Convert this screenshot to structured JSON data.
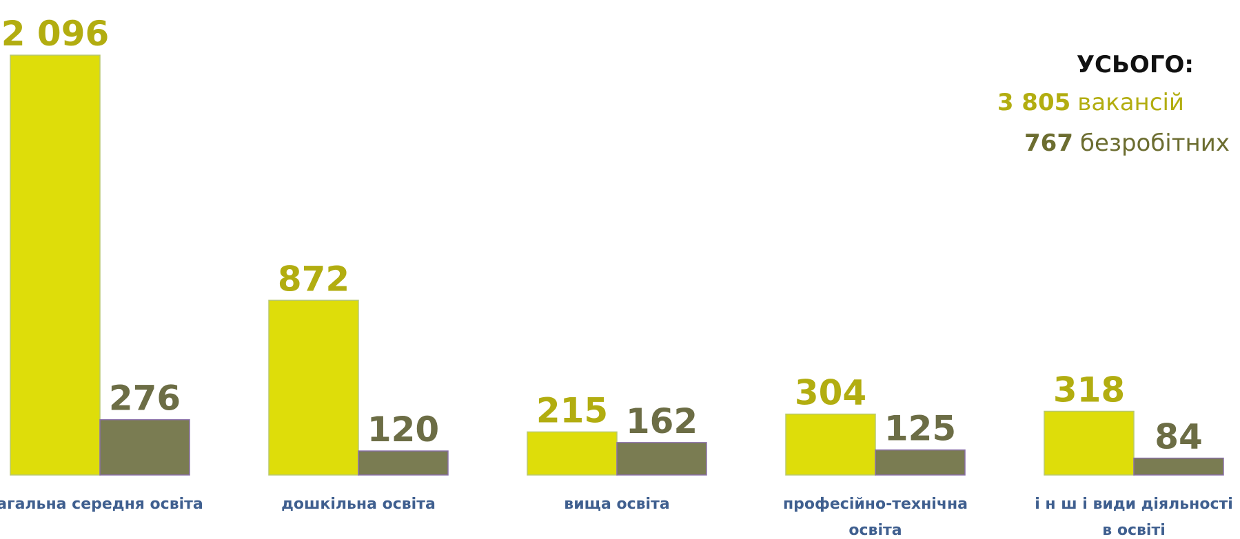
{
  "chart_data": {
    "type": "bar",
    "categories": [
      [
        "агальна середня освіта"
      ],
      [
        "дошкільна освіта"
      ],
      [
        "вища освіта"
      ],
      [
        "професійно-технічна",
        "освіта"
      ],
      [
        "і н ш і  види діяльності",
        "в освіті"
      ]
    ],
    "series": [
      {
        "name": "вакансій",
        "color": "#dedd0a",
        "label_color": "#b2ad10",
        "values": [
          2096,
          872,
          215,
          304,
          318
        ],
        "value_labels": [
          "2 096",
          "872",
          "215",
          "304",
          "318"
        ]
      },
      {
        "name": "безробітних",
        "color": "#7a7c52",
        "label_color": "#6c6d45",
        "values": [
          276,
          120,
          162,
          125,
          84
        ]
      }
    ],
    "ylim": [
      0,
      2100
    ],
    "summary": {
      "title": "УСЬОГО:",
      "totals": [
        {
          "value": 3805,
          "label": "3 805"
        },
        {
          "value": 767,
          "label": "767"
        }
      ]
    }
  }
}
